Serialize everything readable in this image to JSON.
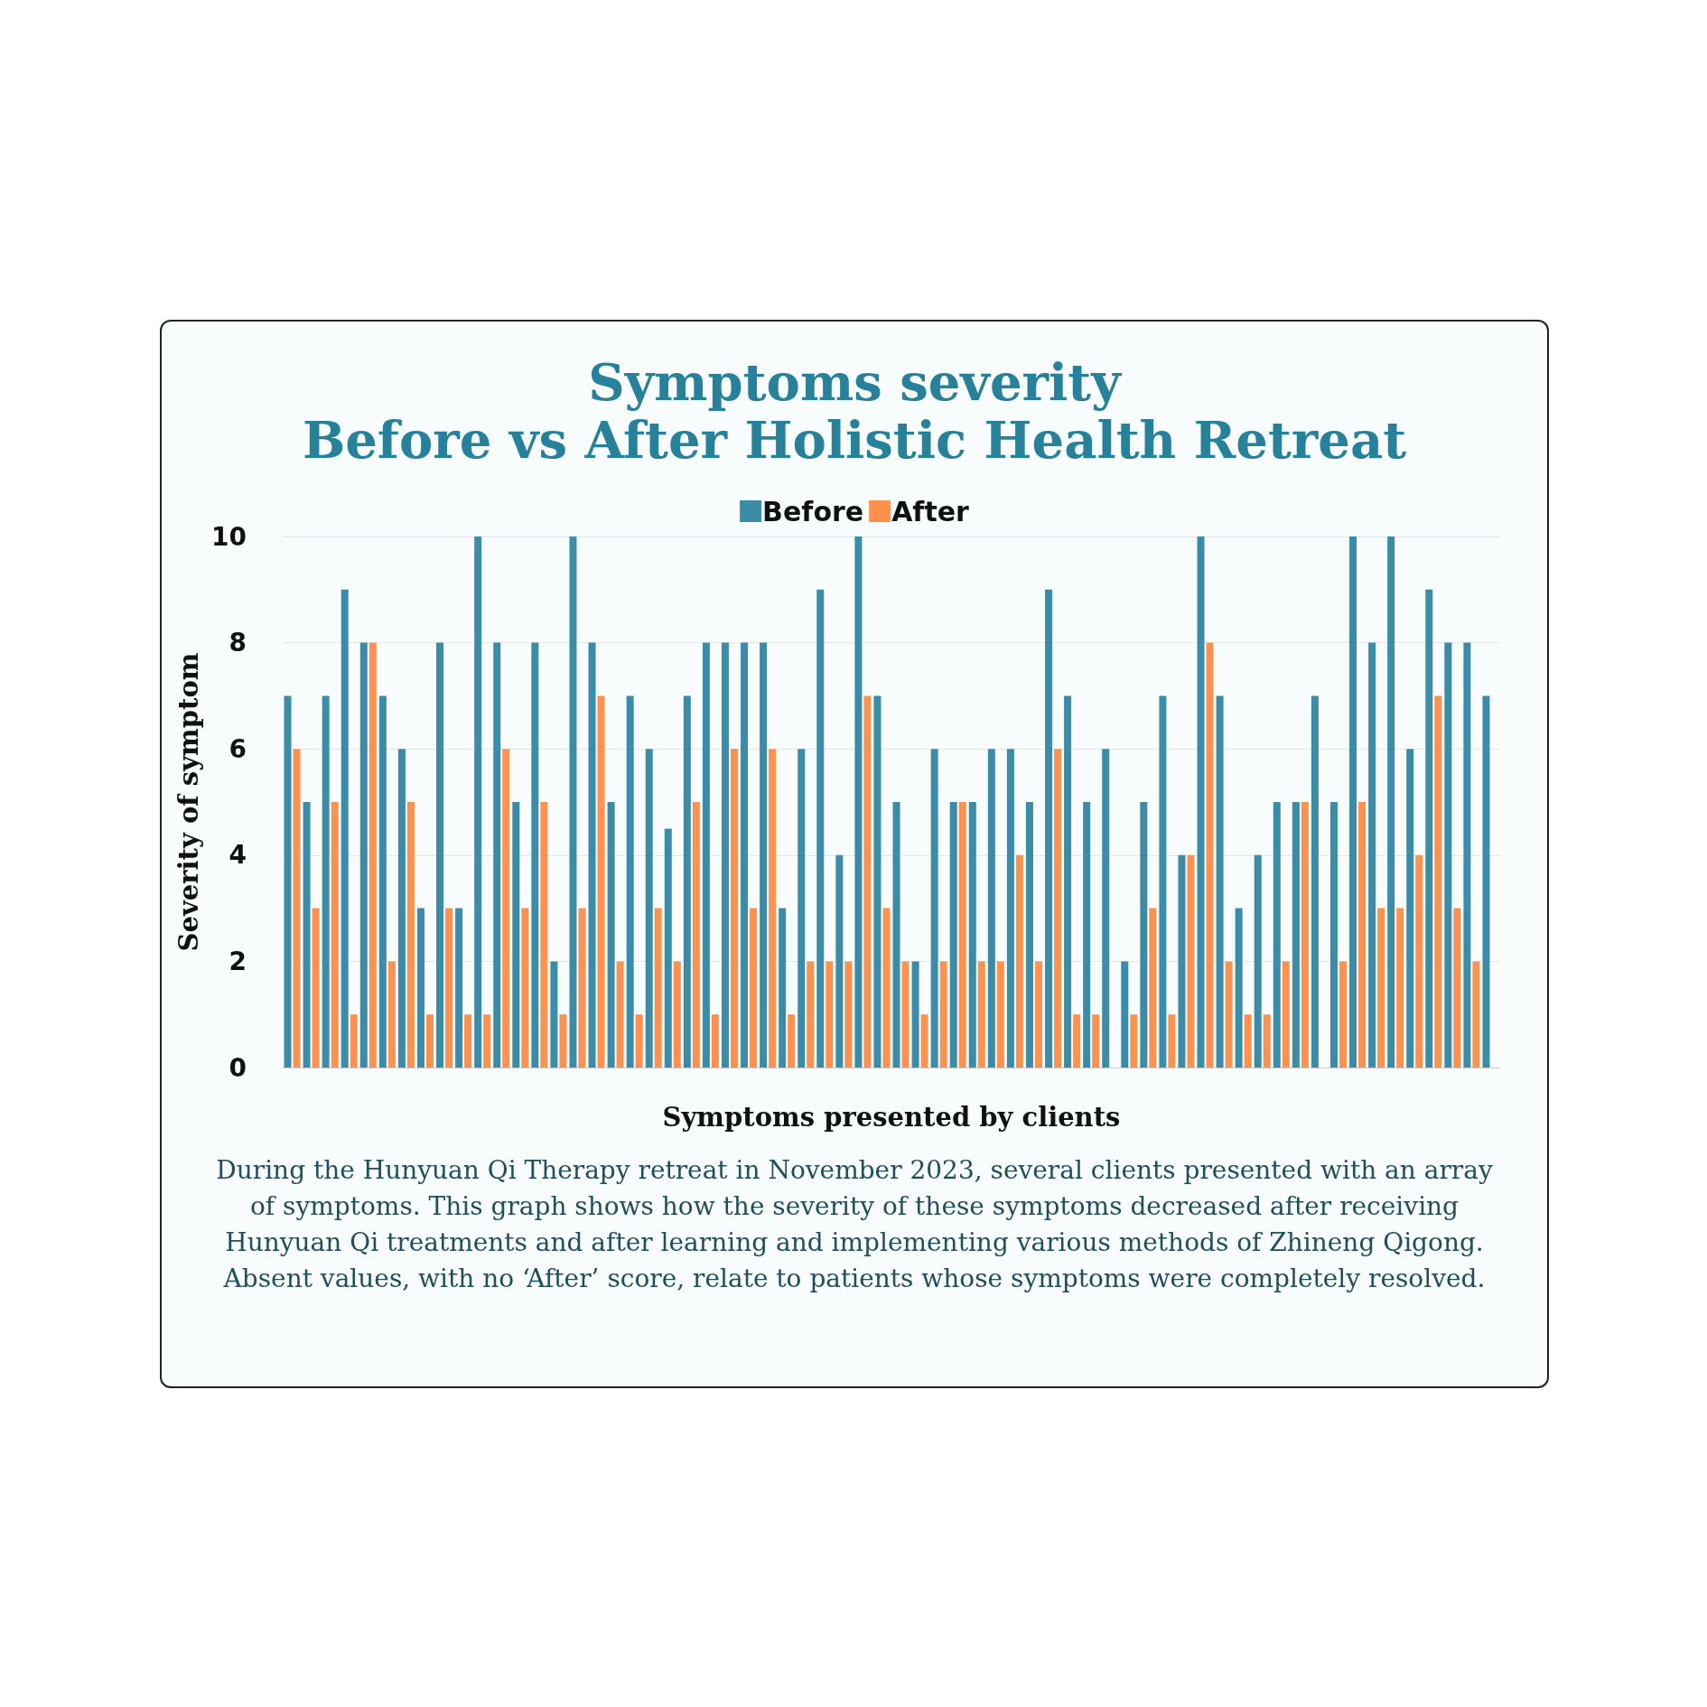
{
  "chart_data": {
    "type": "bar",
    "title": "Symptoms severity\nBefore vs After Holistic Health Retreat",
    "xlabel": "Symptoms presented by clients",
    "ylabel": "Severity of symptom",
    "categories": [
      null,
      null,
      null,
      null,
      null,
      null,
      null,
      null,
      null,
      null,
      null,
      null,
      null,
      null,
      null,
      null,
      null,
      null,
      null,
      null,
      null,
      null,
      null,
      null,
      null,
      null,
      null,
      null,
      null,
      null,
      null,
      null,
      null,
      null,
      null,
      null,
      null,
      null,
      null,
      null,
      null,
      null,
      null,
      null,
      null,
      null,
      null,
      null,
      null,
      null,
      null,
      null,
      null,
      null,
      null,
      null,
      null,
      null,
      null,
      null,
      null,
      null,
      null,
      null
    ],
    "series": [
      {
        "name": "Before",
        "color": "#3a8da8",
        "values": [
          7,
          5,
          7,
          9,
          8,
          7,
          6,
          3,
          8,
          3,
          10,
          8,
          5,
          8,
          2,
          10,
          8,
          5,
          7,
          6,
          4.5,
          7,
          8,
          8,
          8,
          8,
          3,
          6,
          9,
          4,
          10,
          7,
          5,
          2,
          6,
          5,
          5,
          6,
          6,
          5,
          9,
          7,
          5,
          6,
          2,
          5,
          7,
          4,
          10,
          7,
          3,
          4,
          5,
          5,
          7,
          5,
          10,
          8,
          10,
          6,
          9,
          8,
          8,
          7
        ]
      },
      {
        "name": "After",
        "color": "#ff914d",
        "values": [
          6,
          3,
          5,
          1,
          8,
          2,
          5,
          1,
          3,
          1,
          1,
          6,
          3,
          5,
          1,
          3,
          7,
          2,
          1,
          3,
          2,
          5,
          1,
          6,
          3,
          6,
          1,
          2,
          2,
          2,
          7,
          3,
          2,
          1,
          2,
          5,
          2,
          2,
          4,
          2,
          6,
          1,
          1,
          null,
          1,
          3,
          1,
          4,
          8,
          2,
          1,
          1,
          2,
          5,
          null,
          2,
          5,
          3,
          3,
          4,
          7,
          3,
          2,
          null
        ]
      }
    ],
    "ylim": [
      0,
      10
    ],
    "yticks": [
      0,
      2,
      4,
      6,
      8,
      10
    ],
    "grid": "y",
    "legend": "top",
    "annotations": [
      "During the Hunyuan Qi Therapy retreat in November 2023, several clients presented with an array of symptoms. This graph shows how the severity of these symptoms decreased after receiving Hunyuan Qi treatments and after learning and implementing various methods of Zhineng Qigong. Absent values, with no ‘After’ score, relate to patients whose symptoms were completely resolved."
    ]
  }
}
